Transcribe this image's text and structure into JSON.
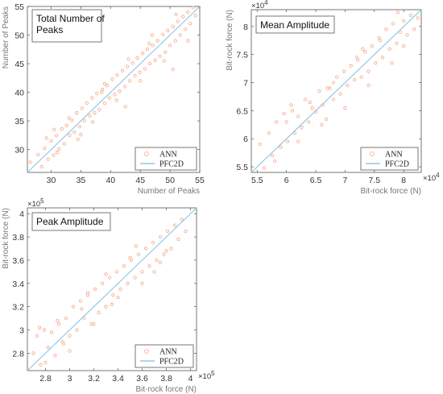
{
  "colors": {
    "points": "#F4A582",
    "line": "#8EC9E8"
  },
  "chart_data": [
    {
      "type": "scatter",
      "id": "peaks",
      "title": [
        "Total Number of",
        "Peaks"
      ],
      "xlabel": "Number of Peaks",
      "ylabel": "Number of Peaks",
      "xlim": [
        26,
        55
      ],
      "ylim": [
        26,
        55
      ],
      "xticks": [
        30,
        35,
        40,
        45,
        50,
        55
      ],
      "yticks": [
        30,
        35,
        40,
        45,
        50,
        55
      ],
      "xexp": "",
      "yexp": "",
      "legend": [
        "ANN",
        "PFC2D"
      ],
      "legend_position": "bottom-right",
      "series": [
        {
          "name": "PFC2D",
          "kind": "line",
          "x": [
            26,
            55
          ],
          "y": [
            26,
            55
          ]
        },
        {
          "name": "ANN",
          "kind": "points",
          "x": [
            26.5,
            27.2,
            27.8,
            28.4,
            28.9,
            29.5,
            30.0,
            30.4,
            30.9,
            31.3,
            31.8,
            32.2,
            32.6,
            33.1,
            33.5,
            33.9,
            34.3,
            34.8,
            35.2,
            35.6,
            36.0,
            36.5,
            36.9,
            37.3,
            37.7,
            38.1,
            38.6,
            39.0,
            39.4,
            39.8,
            40.3,
            40.7,
            41.1,
            41.5,
            42.0,
            42.4,
            42.8,
            43.2,
            43.7,
            44.1,
            44.5,
            44.9,
            45.4,
            45.8,
            46.2,
            46.6,
            47.1,
            47.5,
            47.9,
            48.3,
            48.8,
            49.2,
            49.6,
            50.0,
            50.5,
            50.9,
            51.3,
            51.7,
            52.2,
            52.6,
            53.0,
            53.4,
            53.9,
            54.3,
            29.2,
            31.0,
            33.0,
            35.0,
            37.0,
            39.0,
            41.0,
            43.0,
            45.0,
            47.0,
            49.0,
            51.0,
            53.0,
            30.5,
            34.5,
            38.5,
            42.5,
            46.5,
            50.5
          ],
          "y": [
            27.8,
            25.9,
            29.1,
            27.0,
            30.2,
            28.3,
            31.5,
            29.0,
            32.4,
            30.1,
            33.6,
            31.0,
            34.2,
            32.5,
            35.1,
            33.0,
            36.4,
            34.0,
            37.2,
            35.0,
            38.1,
            35.9,
            39.0,
            36.4,
            39.8,
            37.0,
            40.5,
            38.1,
            41.2,
            39.0,
            42.3,
            39.6,
            43.0,
            40.2,
            43.8,
            41.0,
            44.5,
            42.0,
            45.1,
            42.9,
            46.0,
            43.5,
            46.8,
            44.1,
            47.5,
            45.0,
            48.2,
            45.6,
            49.0,
            46.3,
            50.1,
            47.0,
            50.8,
            48.2,
            51.5,
            49.0,
            52.4,
            50.0,
            53.2,
            51.0,
            54.0,
            52.0,
            54.8,
            53.4,
            32.0,
            29.5,
            35.5,
            32.6,
            34.8,
            41.5,
            38.6,
            45.8,
            42.0,
            50.0,
            45.5,
            53.6,
            49.0,
            33.5,
            31.8,
            40.0,
            37.5,
            48.5,
            44.0
          ]
        }
      ]
    },
    {
      "type": "scatter",
      "id": "mean",
      "title": [
        "Mean Amplitude"
      ],
      "xlabel": "Bit-rock force (N)",
      "ylabel": "Bit-rock force (N)",
      "xlim": [
        5.4,
        8.3
      ],
      "ylim": [
        5.4,
        8.3
      ],
      "xticks": [
        5.5,
        6,
        6.5,
        7,
        7.5,
        8
      ],
      "yticks": [
        5.5,
        6,
        6.5,
        7,
        7.5,
        8
      ],
      "xexp": "4",
      "yexp": "4",
      "legend": [
        "ANN",
        "PFC2D"
      ],
      "legend_position": "bottom-right",
      "series": [
        {
          "name": "PFC2D",
          "kind": "line",
          "x": [
            5.4,
            8.3
          ],
          "y": [
            5.4,
            8.3
          ]
        },
        {
          "name": "ANN",
          "kind": "points",
          "x": [
            5.55,
            5.62,
            5.7,
            5.76,
            5.83,
            5.9,
            5.96,
            6.02,
            6.08,
            6.14,
            6.2,
            6.26,
            6.32,
            6.38,
            6.44,
            6.5,
            6.56,
            6.62,
            6.68,
            6.74,
            6.8,
            6.86,
            6.92,
            6.98,
            7.04,
            7.1,
            7.16,
            7.22,
            7.28,
            7.34,
            7.4,
            7.46,
            7.52,
            7.58,
            7.64,
            7.7,
            7.76,
            7.82,
            7.88,
            7.94,
            8.0,
            8.06,
            8.12,
            8.18,
            8.24,
            5.8,
            6.0,
            6.2,
            6.4,
            6.6,
            6.8,
            7.0,
            7.2,
            7.4,
            7.6,
            7.8,
            8.0,
            6.1,
            6.7,
            7.3,
            7.9
          ],
          "y": [
            5.9,
            5.48,
            6.1,
            5.7,
            6.3,
            5.85,
            6.45,
            5.95,
            6.6,
            6.1,
            6.4,
            6.2,
            6.7,
            6.3,
            6.55,
            6.48,
            6.85,
            6.6,
            6.35,
            6.9,
            6.7,
            7.1,
            6.8,
            7.2,
            6.95,
            7.3,
            7.05,
            7.4,
            7.1,
            7.55,
            7.2,
            7.65,
            7.35,
            7.8,
            7.45,
            7.95,
            7.6,
            8.05,
            7.7,
            7.9,
            8.1,
            7.85,
            8.2,
            7.95,
            8.15,
            5.6,
            6.3,
            5.95,
            6.65,
            6.25,
            7.0,
            6.55,
            7.45,
            6.95,
            7.75,
            7.35,
            7.65,
            6.5,
            6.9,
            7.6,
            8.25
          ]
        }
      ]
    },
    {
      "type": "scatter",
      "id": "peakamp",
      "title": [
        "Peak Amplitude"
      ],
      "xlabel": "Bit-rock force (N)",
      "ylabel": "Bit-rock force (N)",
      "xlim": [
        2.65,
        4.05
      ],
      "ylim": [
        2.65,
        4.05
      ],
      "xticks": [
        2.8,
        3,
        3.2,
        3.4,
        3.6,
        3.8,
        4
      ],
      "yticks": [
        2.8,
        3,
        3.2,
        3.4,
        3.6,
        3.8,
        4
      ],
      "xexp": "5",
      "yexp": "5",
      "legend": [
        "ANN",
        "PFC2D"
      ],
      "legend_position": "bottom-right",
      "series": [
        {
          "name": "PFC2D",
          "kind": "line",
          "x": [
            2.65,
            4.05
          ],
          "y": [
            2.65,
            4.05
          ]
        },
        {
          "name": "ANN",
          "kind": "points",
          "x": [
            2.7,
            2.73,
            2.76,
            2.79,
            2.82,
            2.85,
            2.88,
            2.91,
            2.94,
            2.97,
            3.0,
            3.03,
            3.06,
            3.09,
            3.12,
            3.15,
            3.18,
            3.21,
            3.24,
            3.27,
            3.3,
            3.33,
            3.36,
            3.39,
            3.42,
            3.45,
            3.48,
            3.51,
            3.54,
            3.57,
            3.6,
            3.63,
            3.66,
            3.69,
            3.72,
            3.75,
            3.78,
            3.81,
            3.84,
            3.87,
            3.9,
            3.93,
            3.96,
            2.8,
            2.9,
            3.0,
            3.1,
            3.2,
            3.3,
            3.4,
            3.5,
            3.6,
            3.7,
            3.8,
            2.75,
            2.95,
            3.15,
            3.35,
            3.55,
            3.75
          ],
          "y": [
            2.8,
            2.95,
            2.7,
            3.0,
            2.85,
            2.98,
            2.78,
            3.05,
            2.9,
            3.1,
            2.95,
            3.2,
            3.0,
            3.25,
            3.1,
            3.3,
            3.05,
            3.35,
            3.15,
            3.4,
            3.2,
            3.45,
            3.3,
            3.5,
            3.35,
            3.55,
            3.4,
            3.6,
            3.45,
            3.65,
            3.5,
            3.7,
            3.55,
            3.75,
            3.6,
            3.8,
            3.65,
            3.85,
            3.7,
            3.9,
            3.78,
            3.95,
            3.85,
            2.72,
            3.08,
            2.82,
            3.18,
            3.05,
            3.48,
            3.28,
            3.62,
            3.4,
            3.5,
            3.68,
            3.02,
            2.88,
            3.32,
            3.22,
            3.72,
            3.58
          ]
        }
      ]
    }
  ]
}
